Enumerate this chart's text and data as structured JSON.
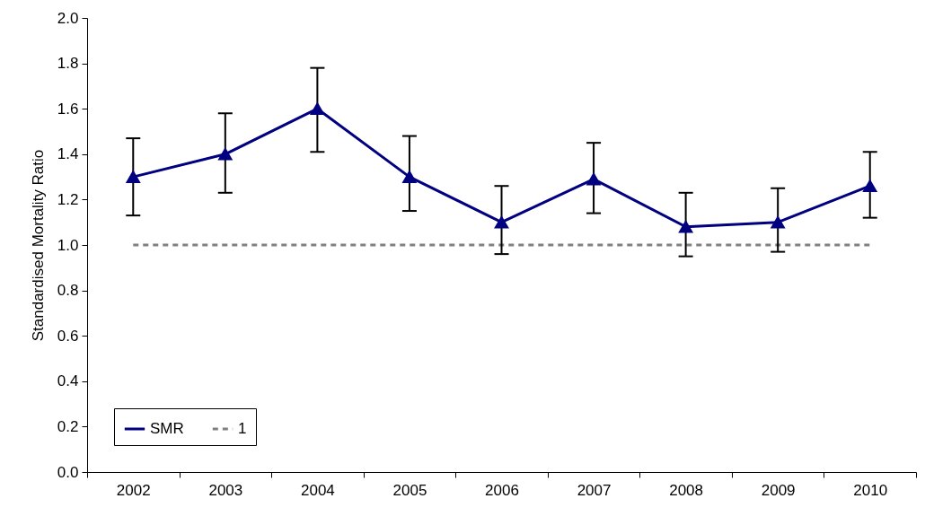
{
  "chart_data": {
    "type": "line",
    "ylabel": "Standardised Mortality Ratio",
    "categories": [
      "2002",
      "2003",
      "2004",
      "2005",
      "2006",
      "2007",
      "2008",
      "2009",
      "2010"
    ],
    "series": [
      {
        "name": "SMR",
        "color": "#000080",
        "marker": "triangle",
        "line_style": "solid",
        "values": [
          1.3,
          1.4,
          1.6,
          1.3,
          1.1,
          1.29,
          1.08,
          1.1,
          1.26
        ],
        "errors": [
          [
            1.13,
            1.47
          ],
          [
            1.23,
            1.58
          ],
          [
            1.41,
            1.78
          ],
          [
            1.15,
            1.48
          ],
          [
            0.96,
            1.26
          ],
          [
            1.14,
            1.45
          ],
          [
            0.95,
            1.23
          ],
          [
            0.97,
            1.25
          ],
          [
            1.12,
            1.41
          ]
        ]
      },
      {
        "name": "1",
        "color": "#808080",
        "marker": "none",
        "line_style": "dashed",
        "values": [
          1,
          1,
          1,
          1,
          1,
          1,
          1,
          1,
          1
        ]
      }
    ],
    "ylim": [
      0,
      2
    ],
    "yticks": [
      {
        "value": 0,
        "label": "0.0"
      },
      {
        "value": 0.2,
        "label": "0.2"
      },
      {
        "value": 0.4,
        "label": "0.4"
      },
      {
        "value": 0.6,
        "label": "0.6"
      },
      {
        "value": 0.8,
        "label": "0.8"
      },
      {
        "value": 1,
        "label": "1.0"
      },
      {
        "value": 1.2,
        "label": "1.2"
      },
      {
        "value": 1.4,
        "label": "1.4"
      },
      {
        "value": 1.6,
        "label": "1.6"
      },
      {
        "value": 1.8,
        "label": "1.8"
      },
      {
        "value": 2,
        "label": "2.0"
      }
    ],
    "grid": false,
    "legend": "bottom left"
  }
}
